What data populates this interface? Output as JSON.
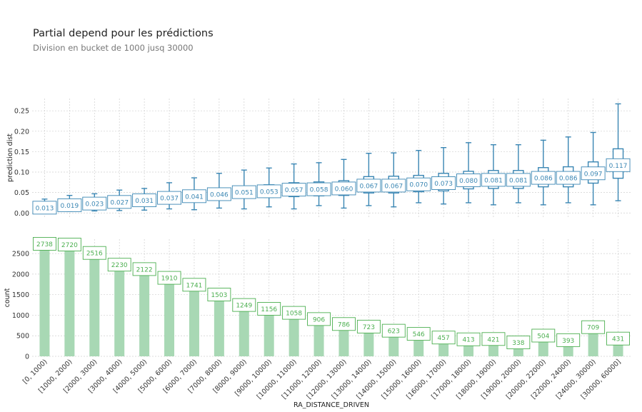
{
  "title": "Partial depend pour les prédictions",
  "subtitle": "Division en bucket de 1000 jusq 30000",
  "colors": {
    "box": "#3a86b3",
    "bar": "#a8d8b4",
    "bar_label": "#4caf50",
    "grid": "#cfcfcf"
  },
  "chart_data": [
    {
      "type": "box",
      "ylabel": "prediction dist",
      "ylim": [
        -0.01,
        0.28
      ],
      "yticks": [
        "0.00",
        "0.05",
        "0.10",
        "0.15",
        "0.20",
        "0.25"
      ],
      "categories": [
        "[0, 1000)",
        "[1000, 2000)",
        "[2000, 3000)",
        "[3000, 4000)",
        "[4000, 5000)",
        "[5000, 6000)",
        "[6000, 7000)",
        "[7000, 8000)",
        "[8000, 9000)",
        "[9000, 10000)",
        "[10000, 11000)",
        "[11000, 12000)",
        "[12000, 13000)",
        "[13000, 14000)",
        "[14000, 15000)",
        "[15000, 16000)",
        "[16000, 17000)",
        "[17000, 18000)",
        "[18000, 19000)",
        "[19000, 20000)",
        "[20000, 22000)",
        "[22000, 24000)",
        "[24000, 30000)",
        "[30000, 60000]"
      ],
      "labels": [
        "0.013",
        "0.019",
        "0.023",
        "0.027",
        "0.031",
        "0.037",
        "0.041",
        "0.046",
        "0.051",
        "0.053",
        "0.057",
        "0.058",
        "0.060",
        "0.067",
        "0.067",
        "0.070",
        "0.073",
        "0.080",
        "0.081",
        "0.081",
        "0.086",
        "0.086",
        "0.097",
        "0.117"
      ],
      "boxes": [
        {
          "min": 0.002,
          "q1": 0.007,
          "med": 0.013,
          "q3": 0.02,
          "max": 0.034
        },
        {
          "min": 0.004,
          "q1": 0.01,
          "med": 0.019,
          "q3": 0.027,
          "max": 0.043
        },
        {
          "min": 0.005,
          "q1": 0.013,
          "med": 0.023,
          "q3": 0.031,
          "max": 0.047
        },
        {
          "min": 0.006,
          "q1": 0.016,
          "med": 0.027,
          "q3": 0.035,
          "max": 0.056
        },
        {
          "min": 0.007,
          "q1": 0.018,
          "med": 0.031,
          "q3": 0.04,
          "max": 0.06
        },
        {
          "min": 0.01,
          "q1": 0.024,
          "med": 0.037,
          "q3": 0.047,
          "max": 0.074
        },
        {
          "min": 0.008,
          "q1": 0.028,
          "med": 0.041,
          "q3": 0.052,
          "max": 0.086
        },
        {
          "min": 0.012,
          "q1": 0.032,
          "med": 0.046,
          "q3": 0.059,
          "max": 0.097
        },
        {
          "min": 0.01,
          "q1": 0.036,
          "med": 0.051,
          "q3": 0.065,
          "max": 0.105
        },
        {
          "min": 0.015,
          "q1": 0.038,
          "med": 0.053,
          "q3": 0.069,
          "max": 0.11
        },
        {
          "min": 0.01,
          "q1": 0.04,
          "med": 0.057,
          "q3": 0.074,
          "max": 0.12
        },
        {
          "min": 0.018,
          "q1": 0.042,
          "med": 0.058,
          "q3": 0.076,
          "max": 0.123
        },
        {
          "min": 0.012,
          "q1": 0.043,
          "med": 0.06,
          "q3": 0.079,
          "max": 0.131
        },
        {
          "min": 0.018,
          "q1": 0.049,
          "med": 0.067,
          "q3": 0.089,
          "max": 0.146
        },
        {
          "min": 0.015,
          "q1": 0.049,
          "med": 0.067,
          "q3": 0.09,
          "max": 0.147
        },
        {
          "min": 0.025,
          "q1": 0.052,
          "med": 0.07,
          "q3": 0.092,
          "max": 0.153
        },
        {
          "min": 0.022,
          "q1": 0.054,
          "med": 0.073,
          "q3": 0.097,
          "max": 0.16
        },
        {
          "min": 0.025,
          "q1": 0.059,
          "med": 0.08,
          "q3": 0.102,
          "max": 0.172
        },
        {
          "min": 0.02,
          "q1": 0.06,
          "med": 0.081,
          "q3": 0.104,
          "max": 0.167
        },
        {
          "min": 0.025,
          "q1": 0.06,
          "med": 0.081,
          "q3": 0.104,
          "max": 0.167
        },
        {
          "min": 0.02,
          "q1": 0.064,
          "med": 0.086,
          "q3": 0.111,
          "max": 0.178
        },
        {
          "min": 0.025,
          "q1": 0.064,
          "med": 0.086,
          "q3": 0.113,
          "max": 0.186
        },
        {
          "min": 0.02,
          "q1": 0.073,
          "med": 0.097,
          "q3": 0.125,
          "max": 0.197
        },
        {
          "min": 0.03,
          "q1": 0.085,
          "med": 0.117,
          "q3": 0.157,
          "max": 0.267
        }
      ]
    },
    {
      "type": "bar",
      "xlabel": "RA_DISTANCE_DRIVEN",
      "ylabel": "count",
      "ylim": [
        0,
        2850
      ],
      "yticks": [
        "0",
        "500",
        "1000",
        "1500",
        "2000",
        "2500"
      ],
      "categories": [
        "[0, 1000)",
        "[1000, 2000)",
        "[2000, 3000)",
        "[3000, 4000)",
        "[4000, 5000)",
        "[5000, 6000)",
        "[6000, 7000)",
        "[7000, 8000)",
        "[8000, 9000)",
        "[9000, 10000)",
        "[10000, 11000)",
        "[11000, 12000)",
        "[12000, 13000)",
        "[13000, 14000)",
        "[14000, 15000)",
        "[15000, 16000)",
        "[16000, 17000)",
        "[17000, 18000)",
        "[18000, 19000)",
        "[19000, 20000)",
        "[20000, 22000)",
        "[22000, 24000)",
        "[24000, 30000)",
        "[30000, 60000]"
      ],
      "values": [
        2738,
        2720,
        2516,
        2230,
        2122,
        1910,
        1741,
        1503,
        1249,
        1156,
        1058,
        906,
        786,
        723,
        623,
        546,
        457,
        413,
        421,
        338,
        504,
        393,
        709,
        431
      ]
    }
  ]
}
